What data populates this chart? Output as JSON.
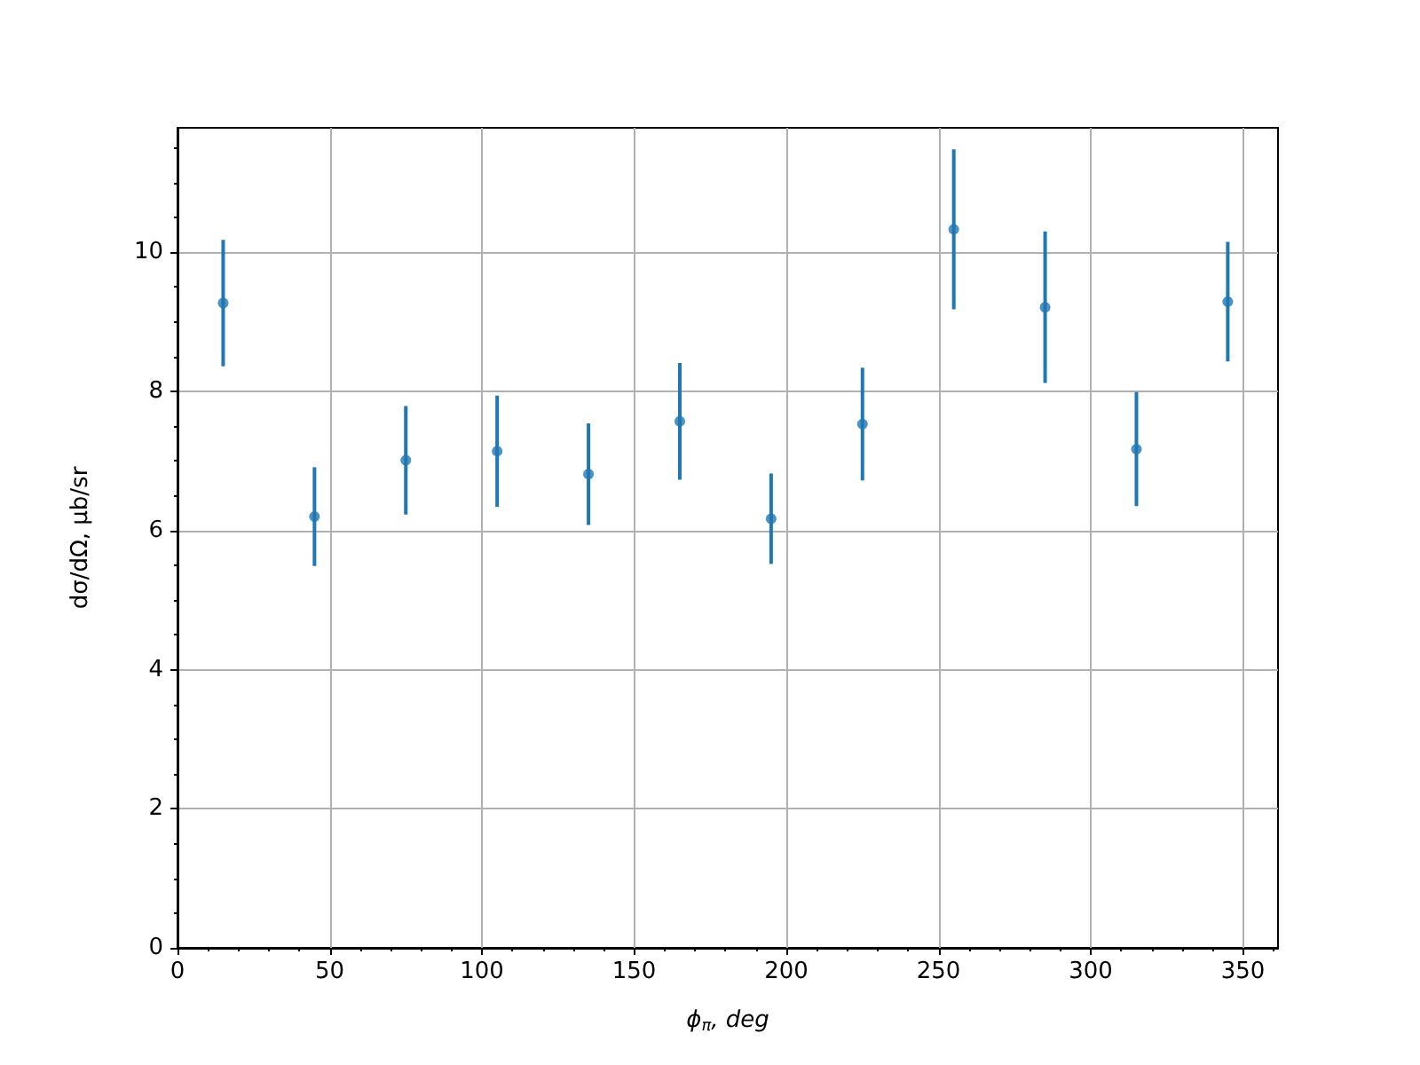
{
  "chart_data": {
    "type": "scatter",
    "xlabel": "ϕ$_{π}$, deg",
    "ylabel": "dσ/dΩ, μb/sr",
    "x": [
      15,
      45,
      75,
      105,
      135,
      165,
      195,
      225,
      255,
      285,
      315,
      345
    ],
    "values": [
      9.27,
      6.2,
      7.01,
      7.14,
      6.81,
      7.57,
      6.17,
      7.53,
      10.33,
      9.21,
      7.17,
      9.29
    ],
    "errors": [
      0.91,
      0.71,
      0.78,
      0.8,
      0.73,
      0.84,
      0.65,
      0.81,
      1.15,
      1.09,
      0.82,
      0.86
    ],
    "color": "#1f77b4",
    "marker": "circle",
    "grid": true,
    "xlim": [
      0,
      361.5
    ],
    "xticks": [
      0,
      {
        "value": 10,
        "label": null
      },
      {
        "value": 20,
        "label": null
      },
      {
        "value": 30,
        "label": null
      },
      {
        "value": 40,
        "label": null
      },
      50,
      {
        "value": 60,
        "label": null
      },
      {
        "value": 70,
        "label": null
      },
      {
        "value": 80,
        "label": null
      },
      {
        "value": 90,
        "label": null
      },
      100,
      {
        "value": 110,
        "label": null
      },
      {
        "value": 120,
        "label": null
      },
      {
        "value": 130,
        "label": null
      },
      {
        "value": 140,
        "label": null
      },
      150,
      {
        "value": 160,
        "label": null
      },
      {
        "value": 170,
        "label": null
      },
      {
        "value": 180,
        "label": null
      },
      {
        "value": 190,
        "label": null
      },
      200,
      {
        "value": 210,
        "label": null
      },
      {
        "value": 220,
        "label": null
      },
      {
        "value": 230,
        "label": null
      },
      {
        "value": 240,
        "label": null
      },
      250,
      {
        "value": 260,
        "label": null
      },
      {
        "value": 270,
        "label": null
      },
      {
        "value": 280,
        "label": null
      },
      {
        "value": 290,
        "label": null
      },
      300,
      {
        "value": 310,
        "label": null
      },
      {
        "value": 320,
        "label": null
      },
      {
        "value": 330,
        "label": null
      },
      {
        "value": 340,
        "label": null
      },
      350,
      {
        "value": 360,
        "label": null
      }
    ],
    "ylim": [
      0,
      11.79
    ],
    "yticks": [
      0,
      {
        "value": 0.5,
        "label": null
      },
      {
        "value": 1,
        "label": null
      },
      {
        "value": 1.5,
        "label": null
      },
      2,
      {
        "value": 2.5,
        "label": null
      },
      {
        "value": 3,
        "label": null
      },
      {
        "value": 3.5,
        "label": null
      },
      4,
      {
        "value": 4.5,
        "label": null
      },
      {
        "value": 5,
        "label": null
      },
      {
        "value": 5.5,
        "label": null
      },
      6,
      {
        "value": 6.5,
        "label": null
      },
      {
        "value": 7,
        "label": null
      },
      {
        "value": 7.5,
        "label": null
      },
      8,
      {
        "value": 8.5,
        "label": null
      },
      {
        "value": 9,
        "label": null
      },
      {
        "value": 9.5,
        "label": null
      },
      10,
      {
        "value": 10.5,
        "label": null
      },
      {
        "value": 11,
        "label": null
      },
      {
        "value": 11.5,
        "label": null
      }
    ]
  }
}
